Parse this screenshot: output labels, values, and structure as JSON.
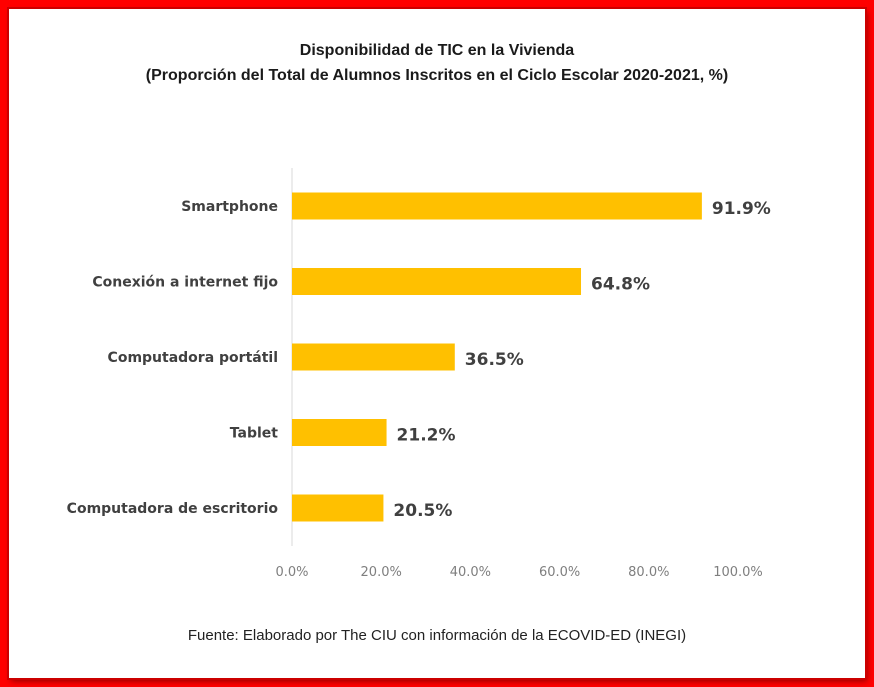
{
  "colors": {
    "frame": "#ff0000",
    "bar": "#ffc000",
    "axis_text": "#7f7f7f",
    "category_text": "#404040",
    "value_text": "#404040"
  },
  "title": "Disponibilidad de TIC en la Vivienda",
  "subtitle": "(Proporción del Total de Alumnos Inscritos en el Ciclo Escolar 2020-2021, %)",
  "source": "Fuente: Elaborado por The CIU con información de la ECOVID-ED (INEGI)",
  "chart_data": {
    "type": "bar",
    "orientation": "horizontal",
    "title": "Disponibilidad de TIC en la Vivienda",
    "subtitle": "(Proporción del Total de Alumnos Inscritos en el Ciclo Escolar 2020-2021, %)",
    "categories": [
      "Smartphone",
      "Conexión a internet fijo",
      "Computadora portátil",
      "Tablet",
      "Computadora de escritorio"
    ],
    "values": [
      91.9,
      64.8,
      36.5,
      21.2,
      20.5
    ],
    "value_labels": [
      "91.9%",
      "64.8%",
      "36.5%",
      "21.2%",
      "20.5%"
    ],
    "xlim": [
      0,
      100
    ],
    "xticks": [
      0,
      20,
      40,
      60,
      80,
      100
    ],
    "xtick_labels": [
      "0.0%",
      "20.0%",
      "40.0%",
      "60.0%",
      "80.0%",
      "100.0%"
    ],
    "xlabel": "",
    "ylabel": "",
    "grid": false,
    "legend": "none"
  }
}
